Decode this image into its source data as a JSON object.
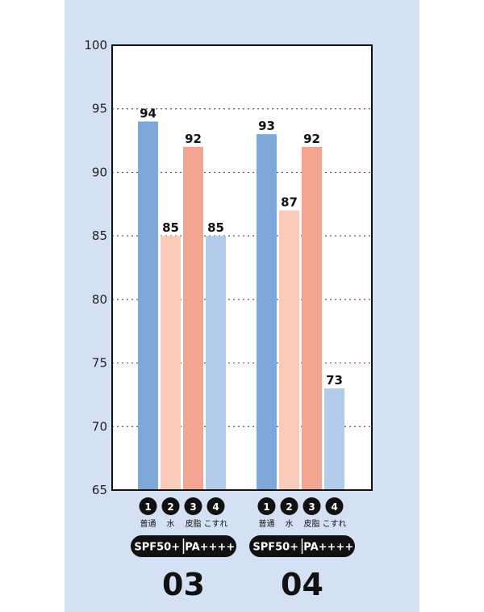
{
  "chart_data": {
    "type": "bar",
    "ylim": [
      65,
      100
    ],
    "yticks": [
      65,
      70,
      75,
      80,
      85,
      90,
      95,
      100
    ],
    "grid": true,
    "grid_style": "dotted",
    "categories": [
      {
        "number": "1",
        "label": "普通"
      },
      {
        "number": "2",
        "label": "水"
      },
      {
        "number": "3",
        "label": "皮脂"
      },
      {
        "number": "4",
        "label": "こすれ"
      }
    ],
    "colors": [
      "#7ea7da",
      "#fbcbba",
      "#f3a592",
      "#b3cbea"
    ],
    "groups": [
      {
        "title": "03",
        "badge_left": "SPF50+",
        "badge_right": "PA++++",
        "values": [
          94,
          85,
          92,
          85
        ]
      },
      {
        "title": "04",
        "badge_left": "SPF50+",
        "badge_right": "PA++++",
        "values": [
          93,
          87,
          92,
          73
        ]
      }
    ]
  },
  "colors": {
    "panel_background": "#d4e1f2",
    "plot_background": "#ffffff",
    "badge_background": "#111111"
  }
}
